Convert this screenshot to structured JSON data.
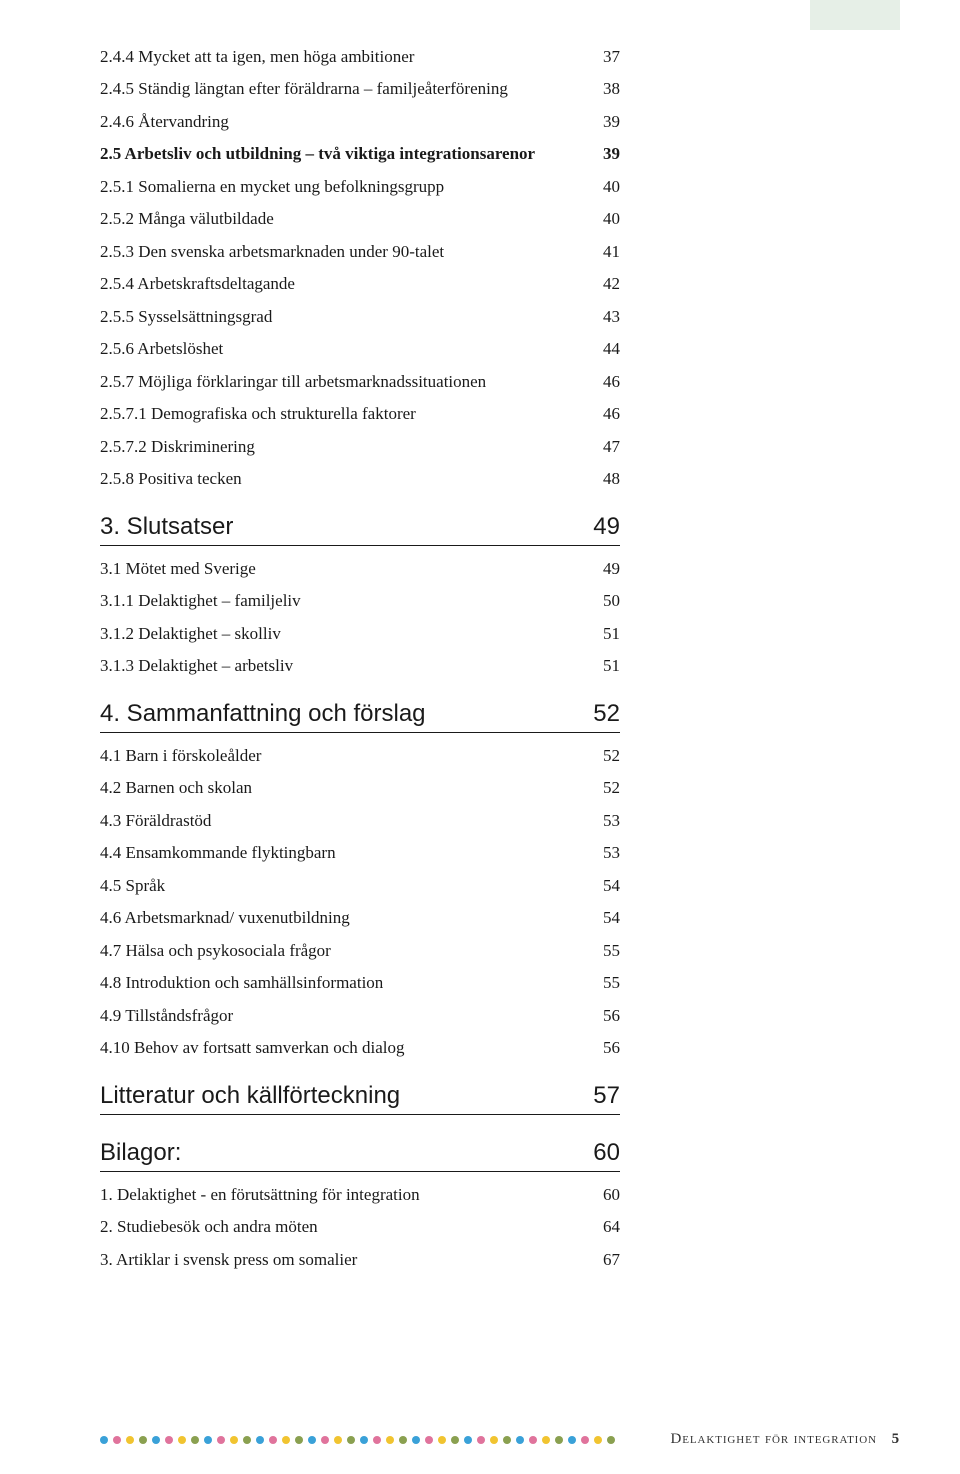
{
  "sections": [
    {
      "heading": null,
      "entries": [
        {
          "title": "2.4.4 Mycket att ta igen, men höga ambitioner",
          "page": "37",
          "bold": false
        },
        {
          "title": "2.4.5 Ständig längtan efter föräldrarna – familjeåterförening",
          "page": "38",
          "bold": false
        },
        {
          "title": "2.4.6 Återvandring",
          "page": "39",
          "bold": false
        },
        {
          "title": "2.5 Arbetsliv och utbildning – två viktiga integrationsarenor",
          "page": "39",
          "bold": true
        },
        {
          "title": "2.5.1 Somalierna en mycket ung befolkningsgrupp",
          "page": "40",
          "bold": false
        },
        {
          "title": "2.5.2 Många välutbildade",
          "page": "40",
          "bold": false
        },
        {
          "title": "2.5.3 Den svenska arbetsmarknaden under 90-talet",
          "page": "41",
          "bold": false
        },
        {
          "title": "2.5.4 Arbetskraftsdeltagande",
          "page": "42",
          "bold": false
        },
        {
          "title": "2.5.5 Sysselsättningsgrad",
          "page": "43",
          "bold": false
        },
        {
          "title": "2.5.6 Arbetslöshet",
          "page": "44",
          "bold": false
        },
        {
          "title": "2.5.7 Möjliga förklaringar till arbetsmarknadssituationen",
          "page": "46",
          "bold": false
        },
        {
          "title": "2.5.7.1 Demografiska och strukturella faktorer",
          "page": "46",
          "bold": false
        },
        {
          "title": "2.5.7.2 Diskriminering",
          "page": "47",
          "bold": false
        },
        {
          "title": "2.5.8 Positiva tecken",
          "page": "48",
          "bold": false
        }
      ]
    },
    {
      "heading": {
        "title": "3. Slutsatser",
        "page": "49"
      },
      "entries": [
        {
          "title": "3.1 Mötet med Sverige",
          "page": "49",
          "bold": false
        },
        {
          "title": "3.1.1 Delaktighet – familjeliv",
          "page": "50",
          "bold": false
        },
        {
          "title": "3.1.2 Delaktighet – skolliv",
          "page": "51",
          "bold": false
        },
        {
          "title": "3.1.3 Delaktighet – arbetsliv",
          "page": "51",
          "bold": false
        }
      ]
    },
    {
      "heading": {
        "title": "4. Sammanfattning och förslag",
        "page": "52"
      },
      "entries": [
        {
          "title": "4.1 Barn i förskoleålder",
          "page": "52",
          "bold": false
        },
        {
          "title": "4.2 Barnen och skolan",
          "page": "52",
          "bold": false
        },
        {
          "title": "4.3 Föräldrastöd",
          "page": "53",
          "bold": false
        },
        {
          "title": "4.4 Ensamkommande flyktingbarn",
          "page": "53",
          "bold": false
        },
        {
          "title": "4.5 Språk",
          "page": "54",
          "bold": false
        },
        {
          "title": "4.6 Arbetsmarknad/ vuxenutbildning",
          "page": "54",
          "bold": false
        },
        {
          "title": "4.7 Hälsa och psykosociala frågor",
          "page": "55",
          "bold": false
        },
        {
          "title": "4.8 Introduktion och samhällsinformation",
          "page": "55",
          "bold": false
        },
        {
          "title": "4.9 Tillståndsfrågor",
          "page": "56",
          "bold": false
        },
        {
          "title": "4.10 Behov av fortsatt samverkan och dialog",
          "page": "56",
          "bold": false
        }
      ]
    },
    {
      "heading": {
        "title": "Litteratur och källförteckning",
        "page": "57"
      },
      "entries": []
    },
    {
      "heading": {
        "title": "Bilagor:",
        "page": "60"
      },
      "entries": [
        {
          "title": "1. Delaktighet - en förutsättning för integration",
          "page": "60",
          "bold": false
        },
        {
          "title": "2. Studiebesök och andra möten",
          "page": "64",
          "bold": false
        },
        {
          "title": "3. Artiklar i svensk press om somalier",
          "page": "67",
          "bold": false
        }
      ]
    }
  ],
  "footer": {
    "dot_colors": [
      "#3aa1d8",
      "#e0739c",
      "#f1c430",
      "#8aa050",
      "#3aa1d8",
      "#e0739c",
      "#f1c430",
      "#8aa050",
      "#3aa1d8",
      "#e0739c",
      "#f1c430",
      "#8aa050",
      "#3aa1d8",
      "#e0739c",
      "#f1c430",
      "#8aa050",
      "#3aa1d8",
      "#e0739c",
      "#f1c430",
      "#8aa050",
      "#3aa1d8",
      "#e0739c",
      "#f1c430",
      "#8aa050",
      "#3aa1d8",
      "#e0739c",
      "#f1c430",
      "#8aa050",
      "#3aa1d8",
      "#e0739c",
      "#f1c430",
      "#8aa050",
      "#3aa1d8",
      "#e0739c",
      "#f1c430",
      "#8aa050",
      "#3aa1d8",
      "#e0739c",
      "#f1c430",
      "#8aa050"
    ],
    "text": "Delaktighet för integration",
    "page_number": "5"
  },
  "sidebar_color": "#e6efe7"
}
